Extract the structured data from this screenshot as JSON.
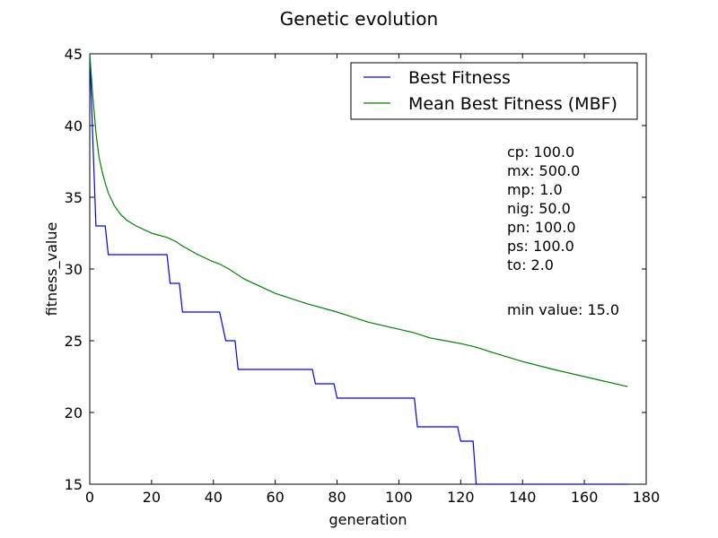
{
  "chart_data": {
    "type": "line",
    "title": "Genetic evolution",
    "xlabel": "generation",
    "ylabel": "fitness_value",
    "xlim": [
      0,
      180
    ],
    "ylim": [
      15,
      45
    ],
    "xticks": [
      0,
      20,
      40,
      60,
      80,
      100,
      120,
      140,
      160,
      180
    ],
    "yticks": [
      15,
      20,
      25,
      30,
      35,
      40,
      45
    ],
    "grid": false,
    "legend": "top-right",
    "series": [
      {
        "name": "Best Fitness",
        "color": "#0000ff",
        "step": true,
        "x": [
          0,
          2,
          5,
          6,
          25,
          26,
          29,
          30,
          42,
          44,
          47,
          48,
          72,
          73,
          79,
          80,
          105,
          106,
          119,
          120,
          124,
          125,
          174
        ],
        "values": [
          45,
          33,
          33,
          31,
          31,
          29,
          29,
          27,
          27,
          25,
          25,
          23,
          23,
          22,
          22,
          21,
          21,
          19,
          19,
          18,
          18,
          15,
          15
        ]
      },
      {
        "name": "Mean Best Fitness (MBF)",
        "color": "#008000",
        "step": false,
        "x": [
          0,
          1,
          2,
          3,
          4,
          5,
          6,
          8,
          10,
          12,
          15,
          20,
          25,
          28,
          30,
          35,
          40,
          42,
          45,
          50,
          60,
          70,
          80,
          90,
          100,
          105,
          110,
          120,
          125,
          130,
          140,
          150,
          160,
          174
        ],
        "values": [
          45,
          42,
          39.5,
          37.8,
          36.8,
          36,
          35.3,
          34.4,
          33.8,
          33.4,
          33,
          32.5,
          32.2,
          31.9,
          31.6,
          31,
          30.5,
          30.35,
          30,
          29.3,
          28.3,
          27.6,
          27,
          26.3,
          25.8,
          25.55,
          25.2,
          24.8,
          24.55,
          24.2,
          23.55,
          23,
          22.5,
          21.8
        ]
      }
    ],
    "annotations": {
      "params": [
        "cp: 100.0",
        "mx: 500.0",
        "mp: 1.0",
        "nig: 50.0",
        "pn: 100.0",
        "ps: 100.0",
        "to: 2.0"
      ],
      "min_value": "min value: 15.0"
    }
  }
}
